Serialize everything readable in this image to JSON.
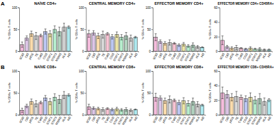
{
  "chart_data": [
    {
      "type": "bar",
      "panel": "A",
      "title": "NAÏVE CD4+",
      "ylabel": "% CD4+ T cells",
      "categories": [
        "SCID",
        "CID",
        "pIGS",
        "TE",
        "CVID",
        "CGD",
        "STAT1",
        "STAT3",
        "MSMD",
        "XLA",
        "HD"
      ],
      "values": [
        15,
        30,
        40,
        35,
        36,
        45,
        40,
        50,
        45,
        55,
        55
      ],
      "errors": [
        6,
        5,
        6,
        8,
        3,
        6,
        7,
        8,
        10,
        9,
        3
      ],
      "colors": [
        "#e0409c",
        "#9b59b6",
        "#f39c12",
        "#8c8c8c",
        "#e75480",
        "#3b5bdb",
        "#c9b400",
        "#2ecc71",
        "#1e7a46",
        "#7f7f7f",
        "#17becf"
      ],
      "ylim": [
        0,
        100
      ],
      "yticks": [
        0,
        50,
        100
      ]
    },
    {
      "type": "bar",
      "title": "CENTRAL MEMORY CD4+",
      "ylabel": "% CD4+ T cells",
      "categories": [
        "SCID",
        "CID",
        "pIGS",
        "TE",
        "CVID",
        "CGD",
        "STAT1",
        "STAT3",
        "MSMD",
        "XLA",
        "HD"
      ],
      "values": [
        40,
        42,
        35,
        38,
        40,
        33,
        38,
        32,
        35,
        30,
        32
      ],
      "errors": [
        8,
        5,
        6,
        8,
        3,
        5,
        6,
        6,
        8,
        7,
        2
      ],
      "colors": [
        "#e0409c",
        "#9b59b6",
        "#f39c12",
        "#8c8c8c",
        "#e75480",
        "#3b5bdb",
        "#c9b400",
        "#2ecc71",
        "#1e7a46",
        "#7f7f7f",
        "#17becf"
      ],
      "ylim": [
        0,
        100
      ],
      "yticks": [
        0,
        50,
        100
      ]
    },
    {
      "type": "bar",
      "title": "EFFECTOR MEMORY CD4+",
      "ylabel": "% CD4+ T cells",
      "categories": [
        "SCID",
        "CID",
        "pIGS",
        "TE",
        "CVID",
        "CGD",
        "STAT1",
        "STAT3",
        "MSMD",
        "XLA",
        "HD"
      ],
      "values": [
        32,
        22,
        18,
        20,
        18,
        14,
        16,
        12,
        14,
        10,
        9
      ],
      "errors": [
        8,
        4,
        4,
        6,
        2,
        3,
        4,
        3,
        5,
        3,
        1
      ],
      "colors": [
        "#e0409c",
        "#9b59b6",
        "#f39c12",
        "#8c8c8c",
        "#e75480",
        "#3b5bdb",
        "#c9b400",
        "#2ecc71",
        "#1e7a46",
        "#7f7f7f",
        "#17becf"
      ],
      "ylim": [
        0,
        100
      ],
      "yticks": [
        0,
        50,
        100
      ]
    },
    {
      "type": "bar",
      "title": "EFFECTOR MEMORY CD4+ CD45RA+",
      "ylabel": "% CD4+ T cells",
      "categories": [
        "SCID",
        "CID",
        "pIGS",
        "TE",
        "CVID",
        "CGD",
        "STAT1",
        "STAT3",
        "MSMD",
        "XLA",
        "HD"
      ],
      "values": [
        15,
        6,
        4,
        5,
        4,
        3,
        4,
        3,
        3,
        2,
        2
      ],
      "errors": [
        6,
        2,
        2,
        3,
        1,
        1,
        2,
        1,
        2,
        1,
        1
      ],
      "colors": [
        "#e0409c",
        "#9b59b6",
        "#f39c12",
        "#8c8c8c",
        "#e75480",
        "#3b5bdb",
        "#c9b400",
        "#2ecc71",
        "#1e7a46",
        "#7f7f7f",
        "#17becf"
      ],
      "ylim": [
        0,
        60
      ],
      "yticks": [
        0,
        20,
        40,
        60
      ]
    },
    {
      "type": "bar",
      "panel": "B",
      "title": "NAÏVE CD8+",
      "ylabel": "% CD8+ T cells",
      "categories": [
        "SCID",
        "CID",
        "pIGS",
        "TE",
        "CVID",
        "CGD",
        "STAT1",
        "STAT3",
        "MSMD",
        "XLA",
        "HD"
      ],
      "values": [
        10,
        20,
        30,
        25,
        28,
        38,
        30,
        40,
        35,
        45,
        45
      ],
      "errors": [
        5,
        4,
        6,
        7,
        3,
        6,
        7,
        8,
        9,
        8,
        3
      ],
      "colors": [
        "#e0409c",
        "#9b59b6",
        "#f39c12",
        "#8c8c8c",
        "#e75480",
        "#3b5bdb",
        "#c9b400",
        "#2ecc71",
        "#1e7a46",
        "#7f7f7f",
        "#17becf"
      ],
      "ylim": [
        0,
        100
      ],
      "yticks": [
        0,
        50,
        100
      ]
    },
    {
      "type": "bar",
      "title": "CENTRAL MEMORY CD8+",
      "ylabel": "% CD8+ T cells",
      "categories": [
        "SCID",
        "CID",
        "pIGS",
        "TE",
        "CVID",
        "CGD",
        "STAT1",
        "STAT3",
        "MSMD",
        "XLA",
        "HD"
      ],
      "values": [
        18,
        15,
        14,
        12,
        14,
        12,
        13,
        11,
        12,
        10,
        12
      ],
      "errors": [
        6,
        3,
        3,
        4,
        2,
        3,
        4,
        3,
        4,
        3,
        1
      ],
      "colors": [
        "#e0409c",
        "#9b59b6",
        "#f39c12",
        "#8c8c8c",
        "#e75480",
        "#3b5bdb",
        "#c9b400",
        "#2ecc71",
        "#1e7a46",
        "#7f7f7f",
        "#17becf"
      ],
      "ylim": [
        0,
        100
      ],
      "yticks": [
        0,
        50,
        100
      ]
    },
    {
      "type": "bar",
      "title": "EFFECTOR MEMORY CD8+",
      "ylabel": "% CD8+ T cells",
      "categories": [
        "SCID",
        "CID",
        "pIGS",
        "TE",
        "CVID",
        "CGD",
        "STAT1",
        "STAT3",
        "MSMD",
        "XLA",
        "HD"
      ],
      "values": [
        40,
        38,
        32,
        35,
        33,
        28,
        32,
        26,
        30,
        24,
        22
      ],
      "errors": [
        9,
        5,
        6,
        8,
        3,
        5,
        7,
        6,
        8,
        6,
        2
      ],
      "colors": [
        "#e0409c",
        "#9b59b6",
        "#f39c12",
        "#8c8c8c",
        "#e75480",
        "#3b5bdb",
        "#c9b400",
        "#2ecc71",
        "#1e7a46",
        "#7f7f7f",
        "#17becf"
      ],
      "ylim": [
        0,
        100
      ],
      "yticks": [
        0,
        50,
        100
      ]
    },
    {
      "type": "bar",
      "title": "EFFECTOR MEMORY CD8+ CD45RA+",
      "ylabel": "% CD8+ T cells",
      "categories": [
        "SCID",
        "CID",
        "pIGS",
        "TE",
        "CVID",
        "CGD",
        "STAT1",
        "STAT3",
        "MSMD",
        "XLA",
        "HD"
      ],
      "values": [
        30,
        28,
        24,
        25,
        24,
        22,
        24,
        20,
        22,
        18,
        20
      ],
      "errors": [
        8,
        5,
        5,
        7,
        3,
        4,
        6,
        5,
        7,
        5,
        2
      ],
      "colors": [
        "#e0409c",
        "#9b59b6",
        "#f39c12",
        "#8c8c8c",
        "#e75480",
        "#3b5bdb",
        "#c9b400",
        "#2ecc71",
        "#1e7a46",
        "#7f7f7f",
        "#17becf"
      ],
      "ylim": [
        0,
        60
      ],
      "yticks": [
        0,
        20,
        40,
        60
      ]
    }
  ]
}
